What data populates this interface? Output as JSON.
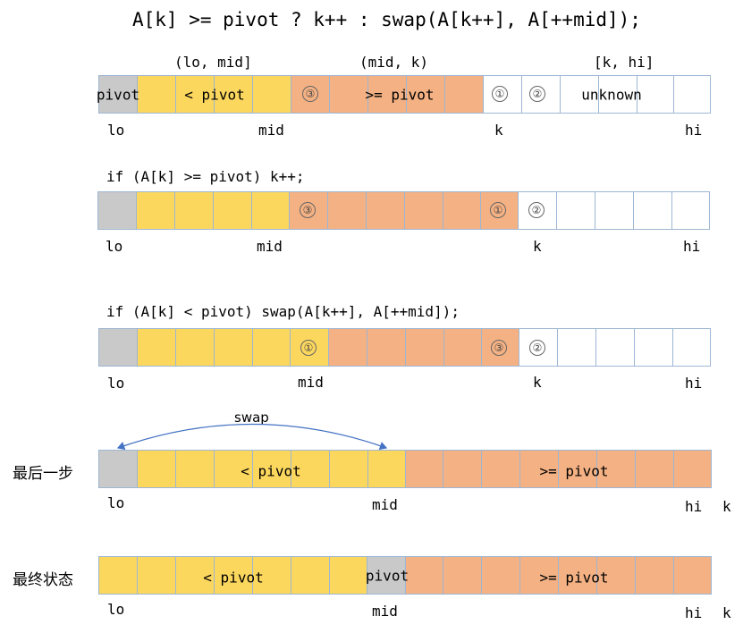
{
  "title": "A[k] >= pivot ? k++ : swap(A[k++], A[++mid]);",
  "colors": {
    "gray": "#c9c9c9",
    "yellow": "#fcd75e",
    "orange": "#f4b183",
    "white": "#ffffff",
    "border": "#9db6d3",
    "arrow": "#4472c4"
  },
  "row1": {
    "range_labels": [
      "(lo, mid]",
      "(mid, k)",
      "[k, hi]"
    ],
    "texts": {
      "pivot": "pivot",
      "lt": "< pivot",
      "ge": ">= pivot",
      "unknown": "unknown"
    },
    "markers": [
      "③",
      "①",
      "②"
    ],
    "index_labels": {
      "lo": "lo",
      "mid": "mid",
      "k": "k",
      "hi": "hi"
    }
  },
  "row2": {
    "caption": "if (A[k] >= pivot) k++;",
    "markers": [
      "③",
      "①",
      "②"
    ],
    "index_labels": {
      "lo": "lo",
      "mid": "mid",
      "k": "k",
      "hi": "hi"
    }
  },
  "row3": {
    "caption": "if (A[k] < pivot) swap(A[k++], A[++mid]);",
    "markers": [
      "①",
      "③",
      "②"
    ],
    "index_labels": {
      "lo": "lo",
      "mid": "mid",
      "k": "k",
      "hi": "hi"
    }
  },
  "row4": {
    "side_label": "最后一步",
    "swap_label": "swap",
    "texts": {
      "lt": "< pivot",
      "ge": ">= pivot"
    },
    "index_labels": {
      "lo": "lo",
      "mid": "mid",
      "hi": "hi",
      "k": "k"
    }
  },
  "row5": {
    "side_label": "最终状态",
    "texts": {
      "lt": "< pivot",
      "pivot": "pivot",
      "ge": ">= pivot"
    },
    "index_labels": {
      "lo": "lo",
      "mid": "mid",
      "hi": "hi",
      "k": "k"
    }
  }
}
